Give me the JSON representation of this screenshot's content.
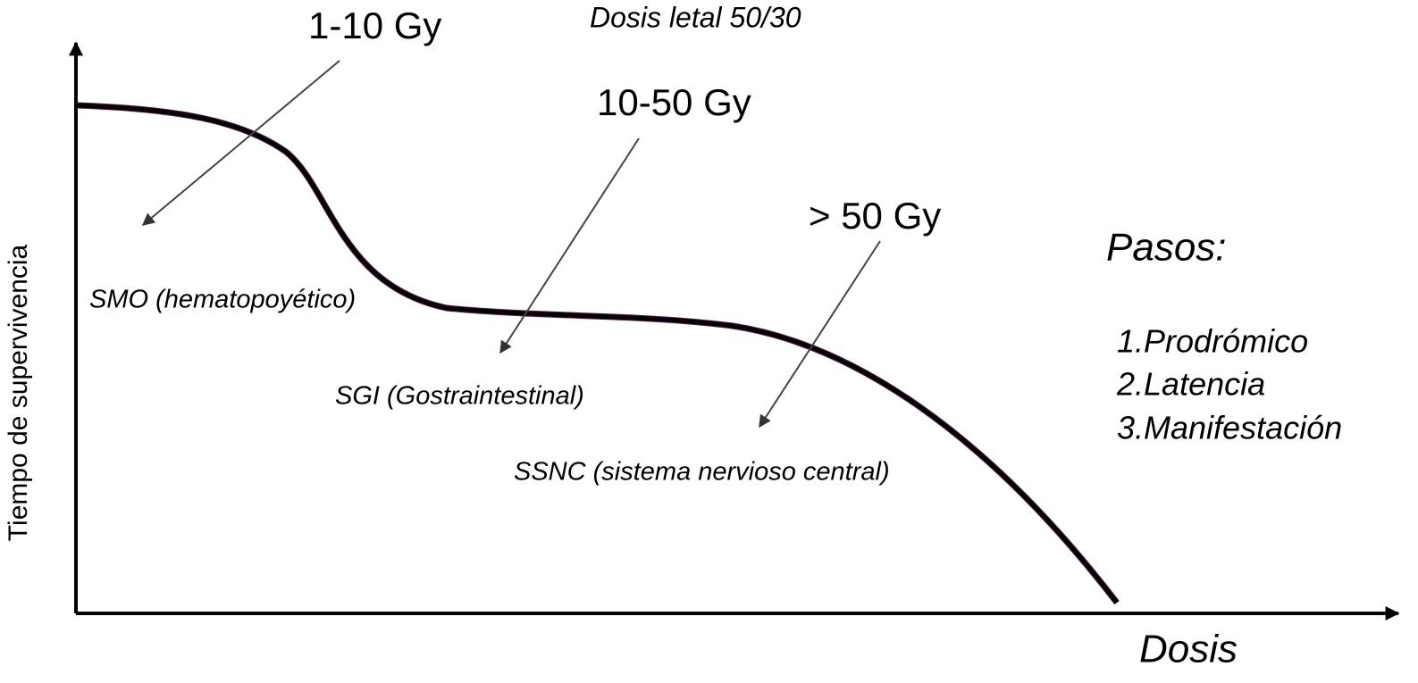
{
  "title": "Dosis letal 50/30",
  "axes": {
    "y_label": "Tiempo de supervivencia",
    "x_label": "Dosis"
  },
  "ranges": [
    {
      "dose": "1-10 Gy",
      "syndrome": "SMO (hematopoyético)"
    },
    {
      "dose": "10-50 Gy",
      "syndrome": "SGI (Gostraintestinal)"
    },
    {
      "dose": "> 50 Gy",
      "syndrome": "SSNC (sistema nervioso central)"
    }
  ],
  "steps": {
    "title": "Pasos:",
    "items": [
      "1.Prodrómico",
      "2.Latencia",
      "3.Manifestación"
    ]
  }
}
